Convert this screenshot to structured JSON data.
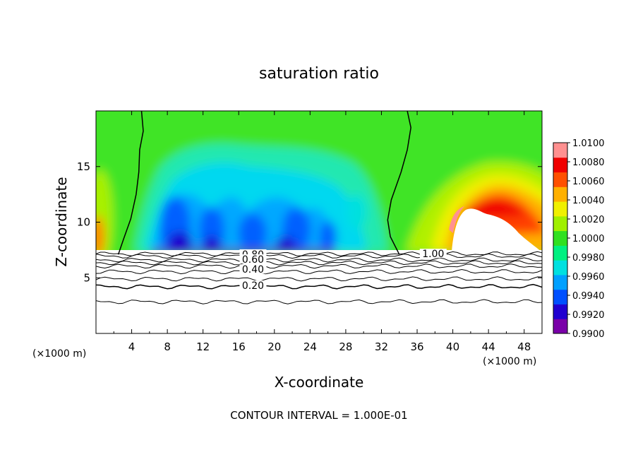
{
  "chart_data": {
    "type": "heatmap",
    "title": "saturation ratio",
    "xlabel": "X-coordinate",
    "ylabel": "Z-coordinate",
    "x_unit_left": "(×1000 m)",
    "x_unit_right": "(×1000 m)",
    "footer": "CONTOUR INTERVAL = 1.000E-01",
    "xlim": [
      0,
      50
    ],
    "ylim": [
      0,
      20
    ],
    "x_ticks": [
      4,
      8,
      12,
      16,
      20,
      24,
      28,
      32,
      36,
      40,
      44,
      48
    ],
    "x_tick_labels": [
      "4",
      "8",
      "12",
      "16",
      "20",
      "24",
      "28",
      "32",
      "36",
      "40",
      "44",
      "48"
    ],
    "y_ticks": [
      5,
      10,
      15
    ],
    "y_tick_labels": [
      "5",
      "10",
      "15"
    ],
    "colorbar": {
      "min": 0.99,
      "max": 1.01,
      "ticks": [
        1.01,
        1.008,
        1.006,
        1.004,
        1.002,
        1.0,
        0.998,
        0.996,
        0.994,
        0.992,
        0.99
      ],
      "tick_labels": [
        "1.0100",
        "1.0080",
        "1.0060",
        "1.0040",
        "1.0020",
        "1.0000",
        "0.9980",
        "0.9960",
        "0.9940",
        "0.9920",
        "0.9900"
      ],
      "colors": [
        "#7a00a8",
        "#2000d0",
        "#0050ff",
        "#00a0ff",
        "#00e0e0",
        "#00f080",
        "#30e020",
        "#a0f000",
        "#f0f000",
        "#ffb000",
        "#ff5000",
        "#f00000",
        "#ff9090"
      ]
    },
    "contour_labels": [
      {
        "text": "0.80",
        "x": 17.6,
        "y": 7.05
      },
      {
        "text": "0.60",
        "x": 17.6,
        "y": 6.6
      },
      {
        "text": "0.40",
        "x": 17.6,
        "y": 5.7
      },
      {
        "text": "0.20",
        "x": 17.6,
        "y": 4.25
      },
      {
        "text": "1.00",
        "x": 37.8,
        "y": 7.1
      }
    ],
    "contour_levels_below_cloud": [
      {
        "level": 0.9,
        "z": 7.15
      },
      {
        "level": 0.8,
        "z": 6.95
      },
      {
        "level": 0.7,
        "z": 6.6
      },
      {
        "level": 0.6,
        "z": 6.35
      },
      {
        "level": 0.5,
        "z": 6.05
      },
      {
        "level": 0.4,
        "z": 5.55
      },
      {
        "level": 0.3,
        "z": 4.9
      },
      {
        "level": 0.2,
        "z": 4.2
      },
      {
        "level": 0.1,
        "z": 2.85
      }
    ],
    "unity_contour_left": [
      [
        2.5,
        7.1
      ],
      [
        3.1,
        8.5
      ],
      [
        3.9,
        10.3
      ],
      [
        4.5,
        12.5
      ],
      [
        4.8,
        14.5
      ],
      [
        4.9,
        16.5
      ],
      [
        5.3,
        18.2
      ],
      [
        5.1,
        20
      ]
    ],
    "unity_contour_right": [
      [
        34.0,
        7.1
      ],
      [
        33.0,
        8.7
      ],
      [
        32.7,
        10.2
      ],
      [
        33.1,
        12.0
      ],
      [
        34.2,
        14.5
      ],
      [
        34.9,
        16.5
      ],
      [
        35.3,
        18.5
      ],
      [
        34.9,
        20
      ]
    ],
    "cloud_base_z": 7.2,
    "top_z": 20
  }
}
